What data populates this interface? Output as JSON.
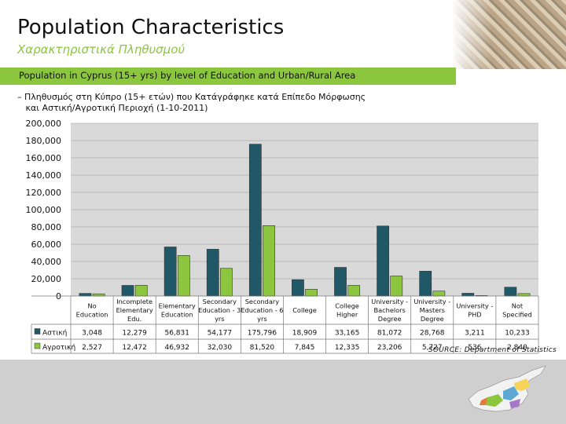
{
  "header": {
    "title": "Population Characteristics",
    "subtitle": "Χαρακτηριστικά Πληθυσμού",
    "banner": "Population in Cyprus (15+ yrs) by level of Education and Urban/Rural Area",
    "description": "– Πληθυσμός στη Κύπρο (15+ ετών) που Κατάγράφηκε κατά Επίπεδο Μόρφωσης\n   και Αστική/Αγροτική Περιοχή (1-10-2011)"
  },
  "footer": {
    "source": "SOURCE: Department of Statistics"
  },
  "colors": {
    "urban": "#215868",
    "rural": "#8cc63f",
    "plot_bg": "#d9d9d9",
    "banner": "#8cc63f"
  },
  "chart_data": {
    "type": "bar",
    "categories": [
      [
        "No",
        "Education"
      ],
      [
        "Incomplete",
        "Elementary",
        "Edu."
      ],
      [
        "Elementary",
        "Education"
      ],
      [
        "Secondary",
        "Education - 3",
        "yrs"
      ],
      [
        "Secondary",
        "Education - 6",
        "yrs"
      ],
      [
        "College"
      ],
      [
        "College",
        "Higher"
      ],
      [
        "University -",
        "Bachelors",
        "Degree"
      ],
      [
        "University -",
        "Masters",
        "Degree"
      ],
      [
        "University -",
        "PHD"
      ],
      [
        "Not",
        "Specified"
      ]
    ],
    "series": [
      {
        "name": "Αστική",
        "values": [
          3048,
          12279,
          56831,
          54177,
          175796,
          18909,
          33165,
          81072,
          28768,
          3211,
          10233
        ],
        "labels": [
          "3,048",
          "12,279",
          "56,831",
          "54,177",
          "175,796",
          "18,909",
          "33,165",
          "81,072",
          "28,768",
          "3,211",
          "10,233"
        ]
      },
      {
        "name": "Αγροτική",
        "values": [
          2527,
          12472,
          46932,
          32030,
          81520,
          7845,
          12335,
          23206,
          5727,
          536,
          2840
        ],
        "labels": [
          "2,527",
          "12,472",
          "46,932",
          "32,030",
          "81,520",
          "7,845",
          "12,335",
          "23,206",
          "5,727",
          "536",
          "2,840"
        ]
      }
    ],
    "ylim": [
      0,
      200000
    ],
    "yticks": [
      "0",
      "20,000",
      "40,000",
      "60,000",
      "80,000",
      "100,000",
      "120,000",
      "140,000",
      "160,000",
      "180,000",
      "200,000"
    ],
    "grid": true,
    "legend": "table-left"
  }
}
